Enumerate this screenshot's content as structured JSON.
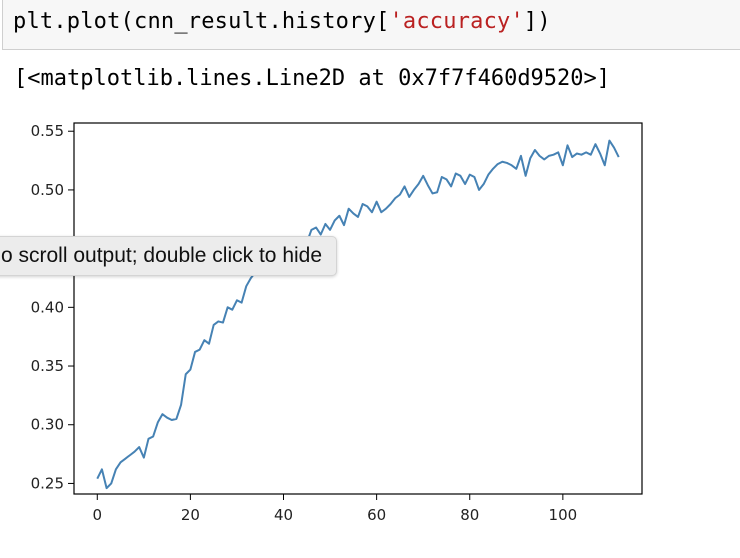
{
  "cell": {
    "code_prefix": "plt.plot(cnn_result.history[",
    "code_string": "'accuracy'",
    "code_suffix": "])",
    "output_repr": "[<matplotlib.lines.Line2D at 0x7f7f460d9520>]"
  },
  "tooltip": {
    "text": "o scroll output; double click to hide"
  },
  "colors": {
    "line": "#4682b4",
    "string": "#ba2121"
  },
  "chart_data": {
    "type": "line",
    "title": "",
    "xlabel": "",
    "ylabel": "",
    "xlim": [
      -5,
      117
    ],
    "ylim": [
      0.241,
      0.557
    ],
    "xticks": [
      0,
      20,
      40,
      60,
      80,
      100
    ],
    "yticks": [
      0.25,
      0.3,
      0.35,
      0.4,
      0.45,
      0.5,
      0.55
    ],
    "xtick_labels": [
      "0",
      "20",
      "40",
      "60",
      "80",
      "100"
    ],
    "ytick_labels": [
      "0.25",
      "0.30",
      "0.35",
      "0.40",
      "",
      "0.50",
      "0.55"
    ],
    "grid": false,
    "series": [
      {
        "values": [
          0.254,
          0.262,
          0.246,
          0.25,
          0.262,
          0.268,
          0.271,
          0.274,
          0.277,
          0.281,
          0.272,
          0.288,
          0.29,
          0.302,
          0.309,
          0.306,
          0.304,
          0.305,
          0.317,
          0.343,
          0.347,
          0.362,
          0.364,
          0.372,
          0.369,
          0.385,
          0.388,
          0.387,
          0.4,
          0.398,
          0.406,
          0.404,
          0.418,
          0.425,
          0.43,
          0.436,
          0.44,
          0.445,
          0.448,
          0.446,
          0.452,
          0.449,
          0.455,
          0.452,
          0.458,
          0.455,
          0.466,
          0.468,
          0.462,
          0.471,
          0.466,
          0.474,
          0.478,
          0.47,
          0.484,
          0.48,
          0.477,
          0.488,
          0.486,
          0.481,
          0.49,
          0.481,
          0.484,
          0.488,
          0.493,
          0.496,
          0.503,
          0.494,
          0.5,
          0.505,
          0.512,
          0.504,
          0.497,
          0.498,
          0.511,
          0.509,
          0.503,
          0.514,
          0.512,
          0.505,
          0.513,
          0.511,
          0.5,
          0.505,
          0.513,
          0.518,
          0.522,
          0.524,
          0.523,
          0.521,
          0.518,
          0.529,
          0.512,
          0.527,
          0.534,
          0.529,
          0.526,
          0.529,
          0.53,
          0.532,
          0.521,
          0.538,
          0.528,
          0.531,
          0.53,
          0.532,
          0.53,
          0.539,
          0.531,
          0.521,
          0.542,
          0.536,
          0.528
        ]
      }
    ]
  }
}
